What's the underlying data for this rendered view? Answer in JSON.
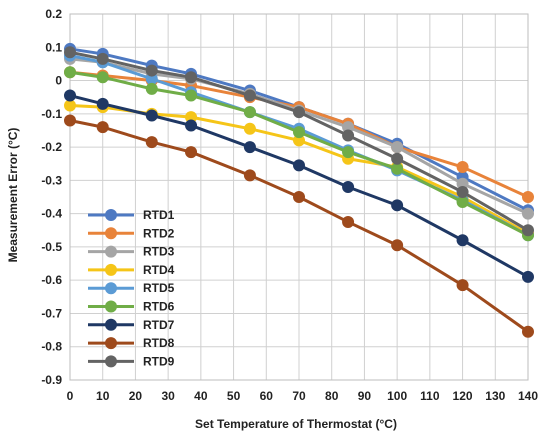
{
  "chart_data": {
    "type": "line",
    "xlabel": "Set Temperature of Thermostat (°C)",
    "ylabel": "Measurement Error (°C)",
    "xlim": [
      0,
      140
    ],
    "ylim": [
      -0.9,
      0.2
    ],
    "xticks": [
      0,
      10,
      20,
      30,
      40,
      50,
      60,
      70,
      80,
      90,
      100,
      110,
      120,
      130,
      140
    ],
    "yticks": [
      0.2,
      0.1,
      0,
      -0.1,
      -0.2,
      -0.3,
      -0.4,
      -0.5,
      -0.6,
      -0.7,
      -0.8,
      -0.9
    ],
    "ytick_labels": [
      "0.2",
      "0.1",
      "0",
      "-0.1",
      "-0.2",
      "-0.3",
      "-0.4",
      "-0.5",
      "-0.6",
      "-0.7",
      "-0.8",
      "-0.9"
    ],
    "grid": true,
    "legend": "bottom-left",
    "x": [
      0,
      10,
      25,
      37,
      55,
      70,
      85,
      100,
      120,
      140
    ],
    "series": [
      {
        "name": "RTD1",
        "color": "#4e79c2",
        "values": [
          0.095,
          0.08,
          0.045,
          0.02,
          -0.03,
          -0.08,
          -0.13,
          -0.19,
          -0.29,
          -0.39
        ]
      },
      {
        "name": "RTD2",
        "color": "#e8833a",
        "values": [
          0.025,
          0.015,
          0.0,
          -0.015,
          -0.05,
          -0.08,
          -0.13,
          -0.2,
          -0.26,
          -0.35
        ]
      },
      {
        "name": "RTD3",
        "color": "#a5a5a5",
        "values": [
          0.065,
          0.055,
          0.02,
          0.005,
          -0.04,
          -0.09,
          -0.14,
          -0.2,
          -0.31,
          -0.4
        ]
      },
      {
        "name": "RTD4",
        "color": "#f5c518",
        "values": [
          -0.075,
          -0.08,
          -0.1,
          -0.11,
          -0.145,
          -0.18,
          -0.235,
          -0.26,
          -0.35,
          -0.46
        ]
      },
      {
        "name": "RTD5",
        "color": "#5b9bd5",
        "values": [
          0.075,
          0.055,
          0.005,
          -0.035,
          -0.095,
          -0.145,
          -0.21,
          -0.27,
          -0.36,
          -0.465
        ]
      },
      {
        "name": "RTD6",
        "color": "#70ad47",
        "values": [
          0.025,
          0.01,
          -0.025,
          -0.045,
          -0.095,
          -0.155,
          -0.215,
          -0.265,
          -0.365,
          -0.465
        ]
      },
      {
        "name": "RTD7",
        "color": "#1f3864",
        "values": [
          -0.045,
          -0.07,
          -0.105,
          -0.135,
          -0.2,
          -0.255,
          -0.32,
          -0.375,
          -0.48,
          -0.59
        ]
      },
      {
        "name": "RTD8",
        "color": "#9e4a1c",
        "values": [
          -0.12,
          -0.14,
          -0.185,
          -0.215,
          -0.285,
          -0.35,
          -0.425,
          -0.495,
          -0.615,
          -0.755
        ]
      },
      {
        "name": "RTD9",
        "color": "#636363",
        "values": [
          0.085,
          0.065,
          0.03,
          0.01,
          -0.045,
          -0.095,
          -0.165,
          -0.235,
          -0.335,
          -0.45
        ]
      }
    ]
  }
}
